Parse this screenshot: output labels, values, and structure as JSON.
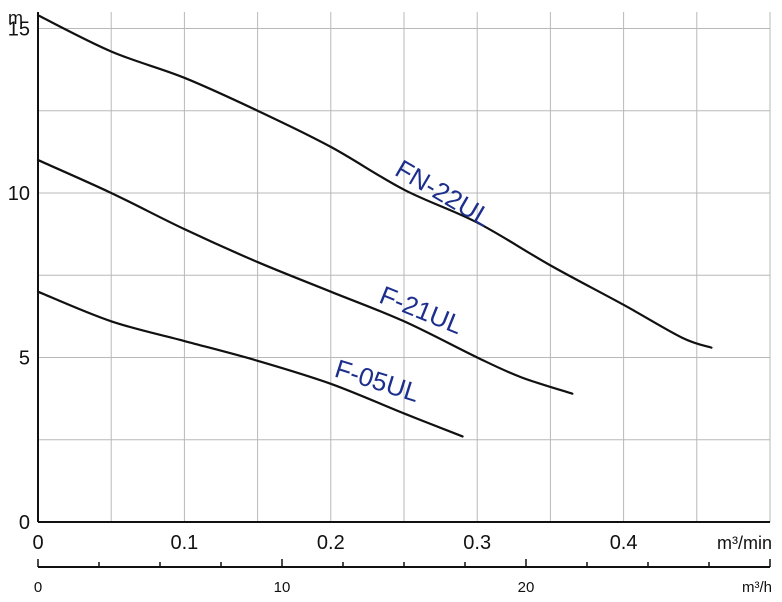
{
  "chart_data": {
    "type": "line",
    "title": "",
    "xlabel": "m³/min",
    "ylabel": "m",
    "secondary_xlabel": "m³/h",
    "xlim": [
      0,
      0.5
    ],
    "ylim": [
      0,
      15.5
    ],
    "xticks": [
      0,
      0.1,
      0.2,
      0.3,
      0.4
    ],
    "xtick_labels": [
      "0",
      "0.1",
      "0.2",
      "0.3",
      "0.4"
    ],
    "yticks": [
      0,
      5,
      10,
      15
    ],
    "ytick_labels": [
      "0",
      "5",
      "10",
      "15"
    ],
    "secondary_xticks": [
      0,
      10,
      20
    ],
    "secondary_xtick_labels": [
      "0",
      "10",
      "20"
    ],
    "grid": true,
    "series": [
      {
        "name": "FN-22UL",
        "x": [
          0,
          0.05,
          0.1,
          0.15,
          0.2,
          0.25,
          0.3,
          0.35,
          0.4,
          0.44,
          0.46
        ],
        "y": [
          15.4,
          14.3,
          13.5,
          12.5,
          11.4,
          10.1,
          9.1,
          7.8,
          6.6,
          5.6,
          5.3
        ]
      },
      {
        "name": "F-21UL",
        "x": [
          0,
          0.05,
          0.1,
          0.15,
          0.2,
          0.25,
          0.3,
          0.33,
          0.365
        ],
        "y": [
          11.0,
          10.0,
          8.9,
          7.9,
          7.0,
          6.1,
          5.0,
          4.4,
          3.9
        ]
      },
      {
        "name": "F-05UL",
        "x": [
          0,
          0.05,
          0.1,
          0.15,
          0.2,
          0.25,
          0.29
        ],
        "y": [
          7.0,
          6.1,
          5.5,
          4.9,
          4.2,
          3.3,
          2.6
        ]
      }
    ],
    "colors": {
      "curve": "#111111",
      "label": "#1c2f8c",
      "grid": "#b8b8b8",
      "axis": "#111111"
    }
  }
}
